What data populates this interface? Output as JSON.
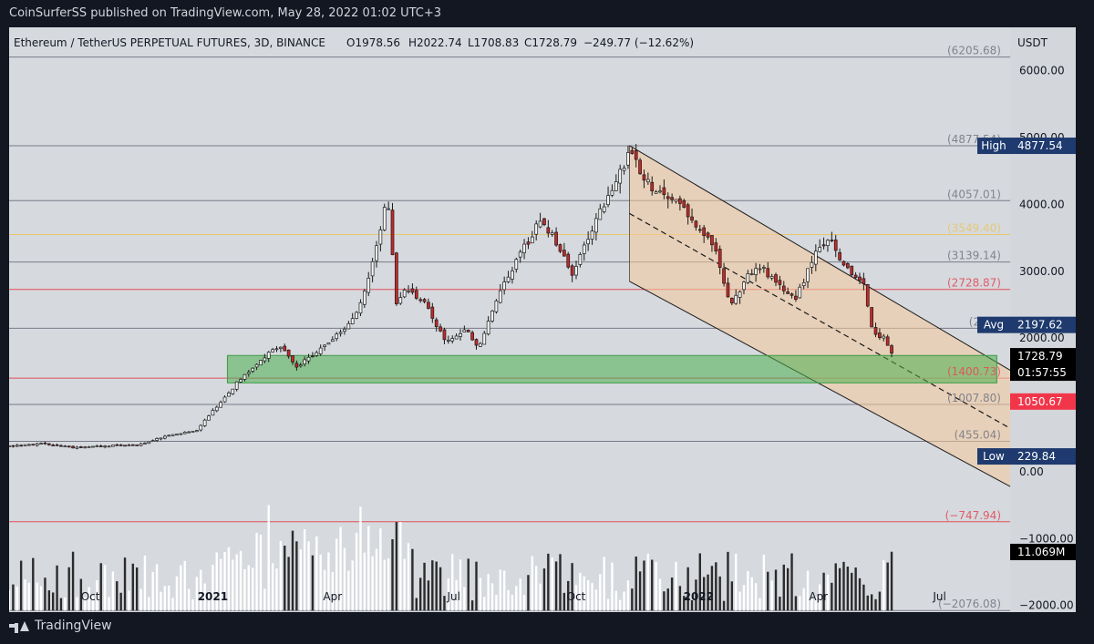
{
  "header": {
    "published": "CoinSurferSS published on TradingView.com, May 28, 2022 01:02 UTC+3"
  },
  "footer": {
    "brand": "TradingView"
  },
  "chart_data": {
    "type": "candlestick",
    "symbol_line": {
      "symbol": "Ethereum / TetherUS PERPETUAL FUTURES, 3D, BINANCE",
      "open": "O1978.56",
      "high": "H2022.74",
      "low": "L1708.83",
      "close": "C1728.79",
      "change": "−249.77 (−12.62%)"
    },
    "currency": "USDT",
    "y_ticks": [
      "6000.00",
      "5000.00",
      "4000.00",
      "3000.00",
      "2000.00",
      "1000.00",
      "0.00",
      "−1000.00",
      "−2000.00"
    ],
    "y_tick_values": [
      6000,
      5000,
      4000,
      3000,
      2000,
      1000,
      0,
      -1000,
      -2000
    ],
    "ylim": [
      -2100,
      6650
    ],
    "x_ticks": [
      "Oct",
      "2021",
      "Apr",
      "Jul",
      "Oct",
      "2022",
      "Apr",
      "Jul"
    ],
    "x_tick_dates": [
      "2020-10-01",
      "2021-01-01",
      "2021-04-01",
      "2021-07-01",
      "2021-10-01",
      "2022-01-01",
      "2022-04-01",
      "2022-07-01"
    ],
    "xlim": [
      "2020-08-01",
      "2022-08-23"
    ],
    "levels": [
      {
        "value": 6205.68,
        "label": "(6205.68)",
        "color": "#787b86"
      },
      {
        "value": 4877.54,
        "label": "(4877.54)",
        "color": "#787b86"
      },
      {
        "value": 4057.01,
        "label": "(4057.01)",
        "color": "#787b86"
      },
      {
        "value": 3549.4,
        "label": "(3549.40)",
        "color": "#e5c86a"
      },
      {
        "value": 3139.14,
        "label": "(3139.14)",
        "color": "#787b86"
      },
      {
        "value": 2728.87,
        "label": "(2728.87)",
        "color": "#e0505a"
      },
      {
        "value": 2148.0,
        "label": "(2148",
        "color": "#787b86"
      },
      {
        "value": 1400.73,
        "label": "(1400.73)",
        "color": "#e0505a"
      },
      {
        "value": 1007.8,
        "label": "(1007.80)",
        "color": "#787b86"
      },
      {
        "value": 455.04,
        "label": "(455.04)",
        "color": "#787b86"
      },
      {
        "value": -747.94,
        "label": "(−747.94)",
        "color": "#e0505a"
      },
      {
        "value": -2076.08,
        "label": "(−2076.08)",
        "color": "#787b86"
      }
    ],
    "badges": [
      {
        "name": "High",
        "price": "4877.54",
        "value": 4877.54,
        "color": "#1e3a6e"
      },
      {
        "name": "Avg",
        "price": "2197.62",
        "value": 2197.62,
        "color": "#1e3a6e"
      },
      {
        "name": "",
        "price": "1728.79",
        "value": 1728.79,
        "time": "01:57:55",
        "color": "#000000"
      },
      {
        "name": "",
        "price": "1050.67",
        "value": 1050.67,
        "color": "#f2364a"
      },
      {
        "name": "Low",
        "price": "229.84",
        "value": 229.84,
        "color": "#1e3a6e"
      },
      {
        "name": "",
        "price": "11.069M",
        "value": -1200,
        "color": "#000000"
      }
    ],
    "green_zone": {
      "from": "2021-01-12",
      "to": "2022-08-13",
      "top": 1740,
      "bottom": 1330,
      "color": "#4caf50"
    },
    "channel": {
      "top": [
        [
          "2021-11-10",
          4880
        ],
        [
          "2022-08-23",
          1520
        ]
      ],
      "bottom": [
        [
          "2021-11-10",
          2850
        ],
        [
          "2022-08-23",
          -220
        ]
      ],
      "mid": [
        [
          "2021-11-10",
          3865
        ],
        [
          "2022-08-23",
          650
        ]
      ],
      "color": "#f5c99a"
    },
    "price_series": [
      [
        "2020-08-01",
        380
      ],
      [
        "2020-08-25",
        420
      ],
      [
        "2020-09-20",
        360
      ],
      [
        "2020-10-15",
        390
      ],
      [
        "2020-11-05",
        400
      ],
      [
        "2020-11-25",
        520
      ],
      [
        "2020-12-20",
        620
      ],
      [
        "2021-01-05",
        1000
      ],
      [
        "2021-01-20",
        1350
      ],
      [
        "2021-02-05",
        1650
      ],
      [
        "2021-02-20",
        1900
      ],
      [
        "2021-03-05",
        1550
      ],
      [
        "2021-03-20",
        1800
      ],
      [
        "2021-04-05",
        2050
      ],
      [
        "2021-04-20",
        2400
      ],
      [
        "2021-05-05",
        3400
      ],
      [
        "2021-05-12",
        4150
      ],
      [
        "2021-05-19",
        2500
      ],
      [
        "2021-05-25",
        2750
      ],
      [
        "2021-06-10",
        2500
      ],
      [
        "2021-06-25",
        1950
      ],
      [
        "2021-07-10",
        2150
      ],
      [
        "2021-07-20",
        1850
      ],
      [
        "2021-08-05",
        2700
      ],
      [
        "2021-08-20",
        3250
      ],
      [
        "2021-09-05",
        3800
      ],
      [
        "2021-09-15",
        3450
      ],
      [
        "2021-09-28",
        2950
      ],
      [
        "2021-10-10",
        3500
      ],
      [
        "2021-10-25",
        4150
      ],
      [
        "2021-11-10",
        4750
      ],
      [
        "2021-11-25",
        4300
      ],
      [
        "2021-12-05",
        4150
      ],
      [
        "2021-12-20",
        3950
      ],
      [
        "2022-01-05",
        3550
      ],
      [
        "2022-01-15",
        3250
      ],
      [
        "2022-01-25",
        2450
      ],
      [
        "2022-02-05",
        2900
      ],
      [
        "2022-02-15",
        3100
      ],
      [
        "2022-03-01",
        2800
      ],
      [
        "2022-03-15",
        2600
      ],
      [
        "2022-04-01",
        3350
      ],
      [
        "2022-04-10",
        3450
      ],
      [
        "2022-04-25",
        2950
      ],
      [
        "2022-05-05",
        2800
      ],
      [
        "2022-05-12",
        2100
      ],
      [
        "2022-05-20",
        2000
      ],
      [
        "2022-05-28",
        1728.79
      ]
    ]
  }
}
